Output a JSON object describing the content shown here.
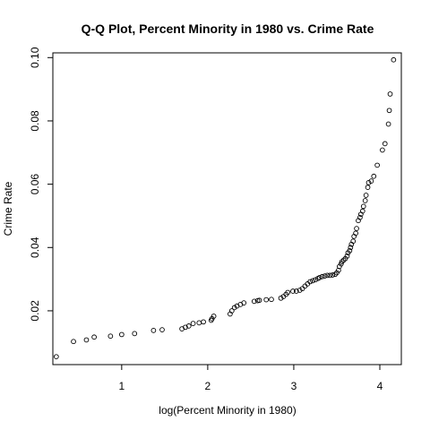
{
  "chart_data": {
    "type": "scatter",
    "title": "Q-Q Plot, Percent Minority in 1980 vs. Crime Rate",
    "xlabel": "log(Percent Minority in 1980)",
    "ylabel": "Crime Rate",
    "xlim": [
      0.2,
      4.25
    ],
    "ylim": [
      0.003,
      0.1015
    ],
    "x_ticks": [
      1,
      2,
      3,
      4
    ],
    "y_ticks": [
      0.02,
      0.04,
      0.06,
      0.08,
      0.1
    ],
    "x_tick_labels": [
      "1",
      "2",
      "3",
      "4"
    ],
    "y_tick_labels": [
      "0.02",
      "0.04",
      "0.06",
      "0.08",
      "0.10"
    ],
    "point_style": "open-circle",
    "grid": false,
    "points": [
      [
        0.24,
        0.0055
      ],
      [
        0.44,
        0.0103
      ],
      [
        0.59,
        0.0108
      ],
      [
        0.68,
        0.0117
      ],
      [
        0.87,
        0.012
      ],
      [
        1.0,
        0.0125
      ],
      [
        1.15,
        0.0128
      ],
      [
        1.37,
        0.0138
      ],
      [
        1.47,
        0.014
      ],
      [
        1.7,
        0.0143
      ],
      [
        1.74,
        0.0148
      ],
      [
        1.78,
        0.0152
      ],
      [
        1.83,
        0.016
      ],
      [
        1.9,
        0.0162
      ],
      [
        1.95,
        0.0165
      ],
      [
        2.04,
        0.017
      ],
      [
        2.05,
        0.0175
      ],
      [
        2.07,
        0.0183
      ],
      [
        2.26,
        0.019
      ],
      [
        2.28,
        0.02
      ],
      [
        2.31,
        0.021
      ],
      [
        2.34,
        0.0215
      ],
      [
        2.38,
        0.022
      ],
      [
        2.42,
        0.0225
      ],
      [
        2.54,
        0.023
      ],
      [
        2.58,
        0.0232
      ],
      [
        2.6,
        0.0233
      ],
      [
        2.68,
        0.0235
      ],
      [
        2.74,
        0.0236
      ],
      [
        2.85,
        0.024
      ],
      [
        2.88,
        0.0245
      ],
      [
        2.91,
        0.0252
      ],
      [
        2.93,
        0.0258
      ],
      [
        2.99,
        0.0262
      ],
      [
        3.03,
        0.0262
      ],
      [
        3.07,
        0.0265
      ],
      [
        3.1,
        0.027
      ],
      [
        3.13,
        0.0278
      ],
      [
        3.16,
        0.0285
      ],
      [
        3.19,
        0.0292
      ],
      [
        3.22,
        0.0295
      ],
      [
        3.25,
        0.0298
      ],
      [
        3.28,
        0.0302
      ],
      [
        3.3,
        0.0305
      ],
      [
        3.33,
        0.0308
      ],
      [
        3.36,
        0.031
      ],
      [
        3.39,
        0.0312
      ],
      [
        3.42,
        0.0312
      ],
      [
        3.45,
        0.0313
      ],
      [
        3.48,
        0.0315
      ],
      [
        3.5,
        0.032
      ],
      [
        3.52,
        0.0328
      ],
      [
        3.53,
        0.034
      ],
      [
        3.55,
        0.0348
      ],
      [
        3.56,
        0.0355
      ],
      [
        3.58,
        0.036
      ],
      [
        3.6,
        0.0365
      ],
      [
        3.62,
        0.0373
      ],
      [
        3.63,
        0.0383
      ],
      [
        3.65,
        0.039
      ],
      [
        3.66,
        0.04
      ],
      [
        3.67,
        0.041
      ],
      [
        3.69,
        0.042
      ],
      [
        3.7,
        0.0435
      ],
      [
        3.72,
        0.0445
      ],
      [
        3.73,
        0.046
      ],
      [
        3.75,
        0.0485
      ],
      [
        3.77,
        0.0495
      ],
      [
        3.78,
        0.0505
      ],
      [
        3.8,
        0.0515
      ],
      [
        3.81,
        0.053
      ],
      [
        3.83,
        0.0548
      ],
      [
        3.84,
        0.0565
      ],
      [
        3.86,
        0.059
      ],
      [
        3.87,
        0.0605
      ],
      [
        3.9,
        0.061
      ],
      [
        3.93,
        0.0625
      ],
      [
        3.97,
        0.066
      ],
      [
        4.03,
        0.0708
      ],
      [
        4.06,
        0.0728
      ],
      [
        4.1,
        0.079
      ],
      [
        4.11,
        0.0833
      ],
      [
        4.12,
        0.0885
      ],
      [
        4.16,
        0.0993
      ]
    ]
  }
}
